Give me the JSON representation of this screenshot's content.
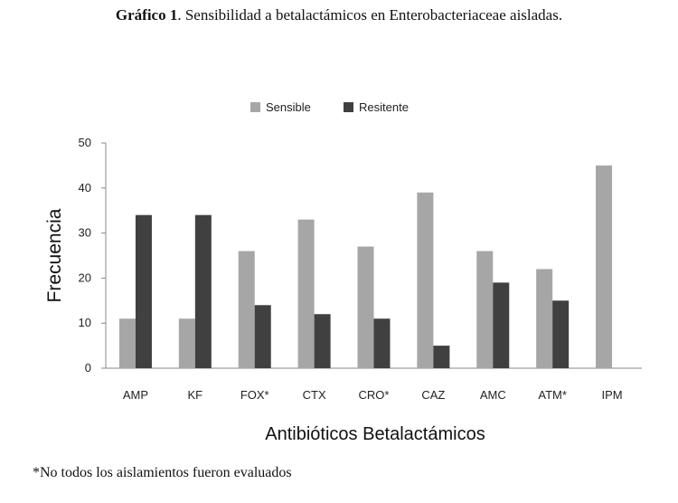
{
  "caption": {
    "bold": "Gráfico 1",
    "rest": ". Sensibilidad a betalactámicos en Enterobacteriaceae aisladas."
  },
  "footnote": "*No todos los aislamientos fueron evaluados",
  "chart_data": {
    "type": "bar",
    "title": "",
    "xlabel": "Antibióticos Betalactámicos",
    "ylabel": "Frecuencia",
    "ylim": [
      0,
      50
    ],
    "yticks": [
      0,
      10,
      20,
      30,
      40,
      50
    ],
    "legend_position": "top",
    "categories": [
      "AMP",
      "KF",
      "FOX*",
      "CTX",
      "CRO*",
      "CAZ",
      "AMC",
      "ATM*",
      "IPM"
    ],
    "series": [
      {
        "name": "Sensible",
        "color": "#a6a6a6",
        "values": [
          11,
          11,
          26,
          33,
          27,
          39,
          26,
          22,
          45
        ]
      },
      {
        "name": "Resitente",
        "color": "#404040",
        "values": [
          34,
          34,
          14,
          12,
          11,
          5,
          19,
          15,
          0
        ]
      }
    ]
  }
}
